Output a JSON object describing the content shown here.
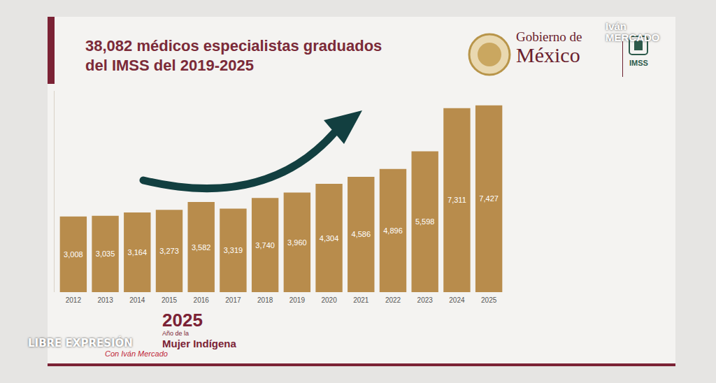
{
  "chart_data": {
    "type": "bar",
    "title": "38,082 médicos especialistas graduados del IMSS del 2019-2025",
    "categories": [
      "2012",
      "2013",
      "2014",
      "2015",
      "2016",
      "2017",
      "2018",
      "2019",
      "2020",
      "2021",
      "2022",
      "2023",
      "2024",
      "2025"
    ],
    "values": [
      3008,
      3035,
      3164,
      3273,
      3582,
      3319,
      3740,
      3960,
      4304,
      4586,
      4896,
      5598,
      7311,
      7427
    ],
    "value_labels": [
      "3,008",
      "3,035",
      "3,164",
      "3,273",
      "3,582",
      "3,319",
      "3,740",
      "3,960",
      "4,304",
      "4,586",
      "4,896",
      "5,598",
      "7,311",
      "7,427"
    ],
    "color": "#b88c4c",
    "ylim": [
      0,
      8000
    ],
    "grid": false,
    "data_labels": true,
    "tick_labels": "x"
  },
  "logo": {
    "line1": "Gobierno de",
    "line2": "México",
    "institution": "IMSS"
  },
  "footer": {
    "year": "2025",
    "line1": "Año de la",
    "line2": "Mujer Indígena"
  },
  "watermarks": {
    "main": "LIBRE EXPRESIÓN",
    "sub": "Con Iván Mercado",
    "corner1": "Iván",
    "corner2": "MERCADO"
  }
}
